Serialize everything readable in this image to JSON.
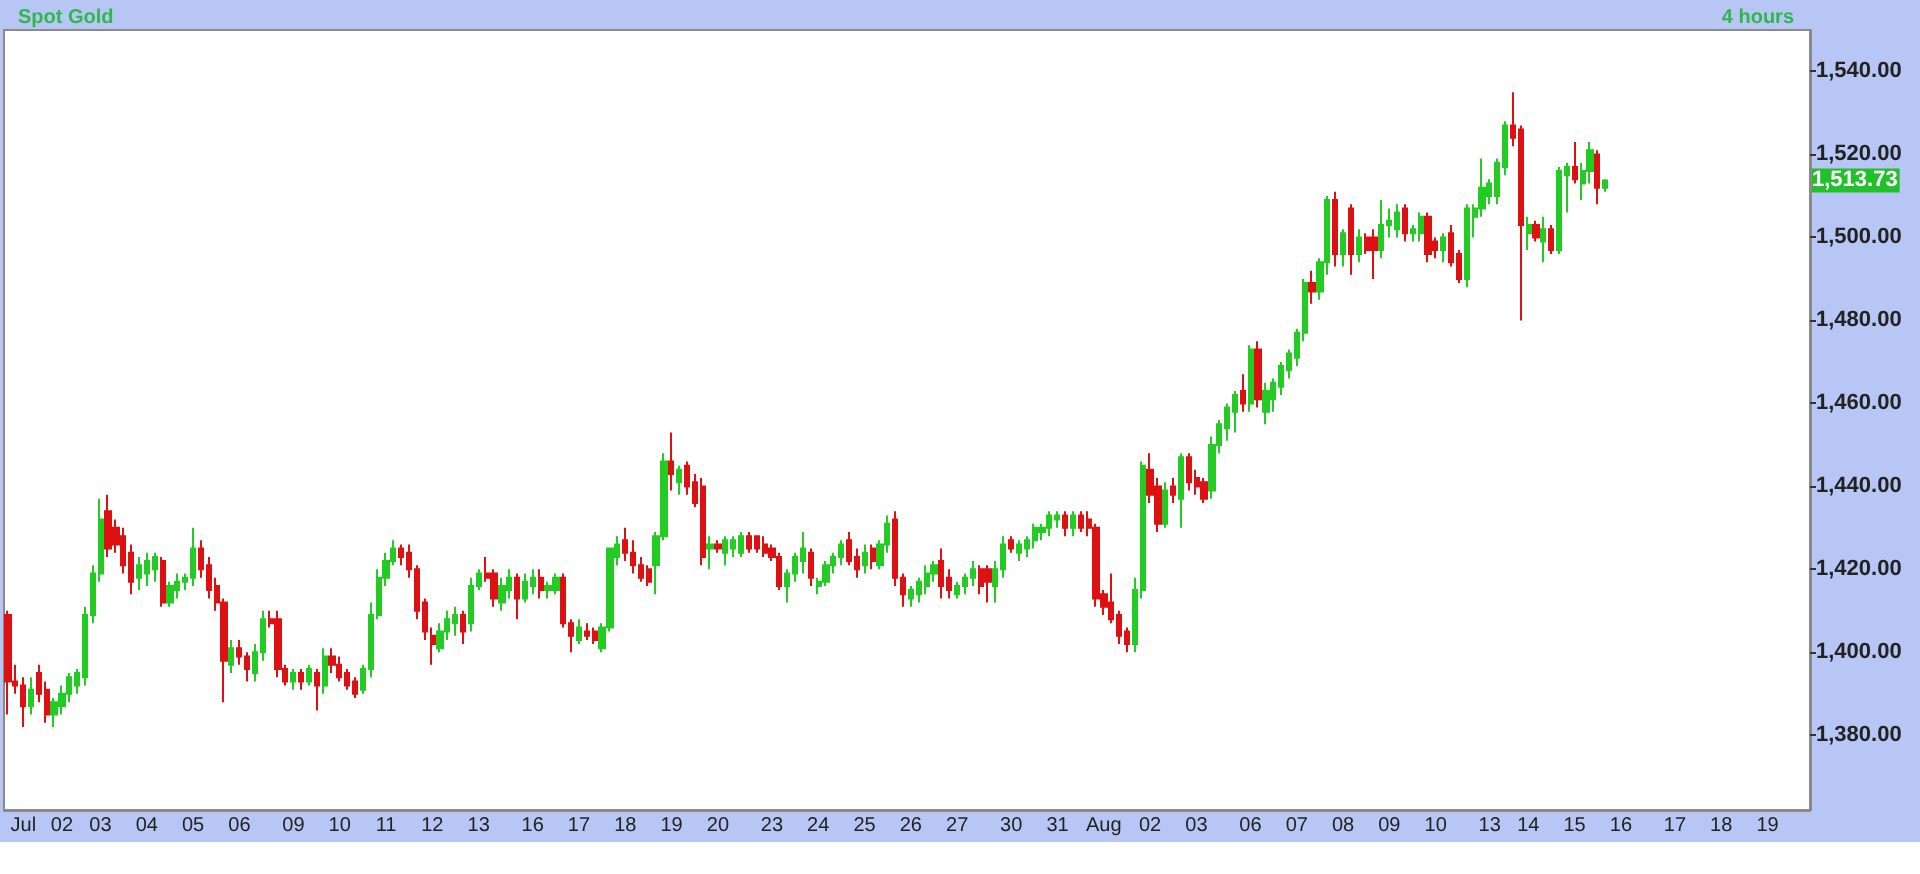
{
  "chart_data": {
    "type": "candlestick",
    "title": "Spot Gold",
    "subtitle": "4 hours",
    "categories": [
      null,
      null,
      "Jul",
      null,
      null,
      null,
      null,
      "02",
      null,
      null,
      null,
      null,
      "03",
      null,
      null,
      null,
      null,
      null,
      "04",
      null,
      null,
      null,
      null,
      null,
      "05",
      null,
      null,
      null,
      null,
      null,
      "06",
      null,
      null,
      null,
      null,
      null,
      null,
      "09",
      null,
      null,
      null,
      null,
      null,
      "10",
      null,
      null,
      null,
      null,
      null,
      "11",
      null,
      null,
      null,
      null,
      null,
      "12",
      null,
      null,
      null,
      null,
      null,
      "13",
      null,
      null,
      null,
      null,
      null,
      null,
      "16",
      null,
      null,
      null,
      null,
      null,
      "17",
      null,
      null,
      null,
      null,
      null,
      "18",
      null,
      null,
      null,
      null,
      null,
      "19",
      null,
      null,
      null,
      null,
      null,
      "20",
      null,
      null,
      null,
      null,
      null,
      null,
      "23",
      null,
      null,
      null,
      null,
      null,
      "24",
      null,
      null,
      null,
      null,
      null,
      "25",
      null,
      null,
      null,
      null,
      null,
      "26",
      null,
      null,
      null,
      null,
      null,
      "27",
      null,
      null,
      null,
      null,
      null,
      null,
      "30",
      null,
      null,
      null,
      null,
      null,
      "31",
      null,
      null,
      null,
      null,
      null,
      "Aug",
      null,
      null,
      null,
      null,
      null,
      "02",
      null,
      null,
      null,
      null,
      null,
      "03",
      null,
      null,
      null,
      null,
      null,
      null,
      "06",
      null,
      null,
      null,
      null,
      null,
      "07",
      null,
      null,
      null,
      null,
      null,
      "08",
      null,
      null,
      null,
      null,
      null,
      "09",
      null,
      null,
      null,
      null,
      null,
      "10",
      null,
      null,
      null,
      null,
      null,
      null,
      "13",
      null,
      null,
      null,
      null,
      "14",
      null,
      null,
      null,
      null,
      null,
      "15",
      null,
      null,
      null,
      null,
      null,
      "16",
      null,
      null,
      null,
      null,
      null,
      null,
      "17",
      null,
      null,
      null,
      null,
      null,
      "18",
      null,
      null,
      null,
      null,
      null,
      "19",
      null,
      null,
      null,
      null,
      null
    ],
    "ohlc": [
      [
        1409,
        1410,
        1385,
        1393
      ],
      [
        1393,
        1397,
        1390,
        1392
      ],
      [
        1392,
        1394,
        1382,
        1387
      ],
      [
        1387,
        1394,
        1385,
        1391
      ],
      [
        1395,
        1397,
        1388,
        1390
      ],
      [
        1391,
        1393,
        1383,
        1385
      ],
      [
        1385,
        1389,
        1382,
        1388
      ],
      [
        1387,
        1392,
        1385,
        1390
      ],
      [
        1390,
        1395,
        1388,
        1394
      ],
      [
        1392,
        1396,
        1390,
        1395
      ],
      [
        1394,
        1411,
        1392,
        1409
      ],
      [
        1409,
        1421,
        1407,
        1419
      ],
      [
        1419,
        1437,
        1417,
        1432
      ],
      [
        1434,
        1438,
        1423,
        1425
      ],
      [
        1430,
        1432,
        1424,
        1426
      ],
      [
        1428,
        1430,
        1419,
        1421
      ],
      [
        1424,
        1426,
        1414,
        1417
      ],
      [
        1418,
        1423,
        1415,
        1421
      ],
      [
        1419,
        1424,
        1416,
        1422
      ],
      [
        1420,
        1424,
        1417,
        1423
      ],
      [
        1422,
        1423,
        1411,
        1412
      ],
      [
        1412,
        1417,
        1411,
        1416
      ],
      [
        1415,
        1419,
        1413,
        1417
      ],
      [
        1417,
        1419,
        1415,
        1418
      ],
      [
        1418,
        1430,
        1416,
        1425
      ],
      [
        1425,
        1427,
        1418,
        1420
      ],
      [
        1421,
        1423,
        1413,
        1415
      ],
      [
        1416,
        1418,
        1410,
        1412
      ],
      [
        1412,
        1413,
        1388,
        1398
      ],
      [
        1397,
        1403,
        1395,
        1401
      ],
      [
        1401,
        1403,
        1397,
        1399
      ],
      [
        1399,
        1400,
        1393,
        1396
      ],
      [
        1395,
        1402,
        1393,
        1400
      ],
      [
        1400,
        1410,
        1398,
        1408
      ],
      [
        1408,
        1410,
        1406,
        1407
      ],
      [
        1408,
        1410,
        1394,
        1396
      ],
      [
        1396,
        1397,
        1392,
        1393
      ],
      [
        1393,
        1396,
        1391,
        1395
      ],
      [
        1395,
        1396,
        1391,
        1393
      ],
      [
        1393,
        1397,
        1392,
        1396
      ],
      [
        1395,
        1396,
        1386,
        1392
      ],
      [
        1392,
        1401,
        1390,
        1399
      ],
      [
        1399,
        1401,
        1395,
        1397
      ],
      [
        1397,
        1399,
        1393,
        1394
      ],
      [
        1395,
        1396,
        1391,
        1392
      ],
      [
        1393,
        1394,
        1389,
        1390
      ],
      [
        1391,
        1397,
        1390,
        1396
      ],
      [
        1396,
        1412,
        1394,
        1409
      ],
      [
        1409,
        1420,
        1408,
        1418
      ],
      [
        1418,
        1424,
        1416,
        1422
      ],
      [
        1422,
        1427,
        1421,
        1425
      ],
      [
        1425,
        1426,
        1421,
        1423
      ],
      [
        1424,
        1426,
        1418,
        1420
      ],
      [
        1420,
        1421,
        1408,
        1410
      ],
      [
        1412,
        1413,
        1403,
        1405
      ],
      [
        1404,
        1406,
        1397,
        1402
      ],
      [
        1401,
        1407,
        1400,
        1405
      ],
      [
        1405,
        1410,
        1403,
        1408
      ],
      [
        1407,
        1411,
        1404,
        1409
      ],
      [
        1409,
        1410,
        1402,
        1405
      ],
      [
        1407,
        1418,
        1405,
        1416
      ],
      [
        1416,
        1420,
        1415,
        1419
      ],
      [
        1419,
        1423,
        1417,
        1418
      ],
      [
        1419,
        1420,
        1411,
        1413
      ],
      [
        1412,
        1418,
        1410,
        1416
      ],
      [
        1415,
        1420,
        1413,
        1418
      ],
      [
        1418,
        1419,
        1408,
        1413
      ],
      [
        1413,
        1419,
        1412,
        1417
      ],
      [
        1416,
        1420,
        1414,
        1418
      ],
      [
        1418,
        1420,
        1413,
        1415
      ],
      [
        1415,
        1417,
        1413,
        1416
      ],
      [
        1415,
        1419,
        1414,
        1418
      ],
      [
        1418,
        1419,
        1406,
        1407
      ],
      [
        1407,
        1408,
        1400,
        1404
      ],
      [
        1403,
        1408,
        1402,
        1406
      ],
      [
        1405,
        1407,
        1403,
        1404
      ],
      [
        1405,
        1406,
        1402,
        1403
      ],
      [
        1401,
        1407,
        1400,
        1406
      ],
      [
        1406,
        1425,
        1405,
        1425
      ],
      [
        1423,
        1428,
        1421,
        1426
      ],
      [
        1427,
        1430,
        1422,
        1424
      ],
      [
        1424,
        1427,
        1419,
        1421
      ],
      [
        1421,
        1423,
        1417,
        1418
      ],
      [
        1420,
        1421,
        1416,
        1417
      ],
      [
        1421,
        1429,
        1414,
        1428
      ],
      [
        1428,
        1448,
        1427,
        1446
      ],
      [
        1446,
        1453,
        1439,
        1443
      ],
      [
        1441,
        1445,
        1438,
        1444
      ],
      [
        1445,
        1446,
        1438,
        1440
      ],
      [
        1441,
        1443,
        1435,
        1436
      ],
      [
        1440,
        1442,
        1421,
        1423
      ],
      [
        1425,
        1428,
        1420,
        1426
      ],
      [
        1426,
        1427,
        1424,
        1425
      ],
      [
        1424,
        1428,
        1421,
        1427
      ],
      [
        1425,
        1428,
        1423,
        1427
      ],
      [
        1424,
        1429,
        1423,
        1428
      ],
      [
        1428,
        1429,
        1424,
        1425
      ],
      [
        1428,
        1428,
        1424,
        1425
      ],
      [
        1426,
        1428,
        1423,
        1424
      ],
      [
        1425,
        1426,
        1422,
        1423
      ],
      [
        1423,
        1424,
        1415,
        1416
      ],
      [
        1416,
        1420,
        1412,
        1419
      ],
      [
        1419,
        1424,
        1417,
        1423
      ],
      [
        1422,
        1429,
        1419,
        1425
      ],
      [
        1424,
        1425,
        1416,
        1418
      ],
      [
        1416,
        1418,
        1414,
        1417
      ],
      [
        1417,
        1422,
        1416,
        1421
      ],
      [
        1421,
        1424,
        1419,
        1423
      ],
      [
        1423,
        1427,
        1421,
        1426
      ],
      [
        1427,
        1429,
        1421,
        1422
      ],
      [
        1423,
        1425,
        1418,
        1420
      ],
      [
        1421,
        1426,
        1419,
        1424
      ],
      [
        1425,
        1426,
        1420,
        1422
      ],
      [
        1421,
        1427,
        1420,
        1426
      ],
      [
        1426,
        1433,
        1424,
        1431
      ],
      [
        1432,
        1434,
        1416,
        1418
      ],
      [
        1418,
        1419,
        1411,
        1414
      ],
      [
        1413,
        1416,
        1411,
        1415
      ],
      [
        1414,
        1418,
        1412,
        1417
      ],
      [
        1416,
        1421,
        1414,
        1419
      ],
      [
        1419,
        1422,
        1417,
        1421
      ],
      [
        1422,
        1425,
        1413,
        1416
      ],
      [
        1418,
        1420,
        1413,
        1415
      ],
      [
        1414,
        1417,
        1413,
        1416
      ],
      [
        1416,
        1419,
        1414,
        1418
      ],
      [
        1418,
        1422,
        1416,
        1420
      ],
      [
        1420,
        1421,
        1414,
        1416
      ],
      [
        1420,
        1421,
        1412,
        1417
      ],
      [
        1416,
        1422,
        1412,
        1420
      ],
      [
        1420,
        1428,
        1418,
        1426
      ],
      [
        1427,
        1428,
        1424,
        1425
      ],
      [
        1424,
        1427,
        1422,
        1426
      ],
      [
        1425,
        1428,
        1423,
        1427
      ],
      [
        1427,
        1431,
        1425,
        1430
      ],
      [
        1429,
        1431,
        1427,
        1430
      ],
      [
        1430,
        1434,
        1428,
        1433
      ],
      [
        1432,
        1434,
        1430,
        1433
      ],
      [
        1433,
        1434,
        1428,
        1430
      ],
      [
        1430,
        1434,
        1428,
        1433
      ],
      [
        1433,
        1434,
        1429,
        1430
      ],
      [
        1432,
        1434,
        1428,
        1430
      ],
      [
        1430,
        1431,
        1411,
        1413
      ],
      [
        1414,
        1415,
        1409,
        1411
      ],
      [
        1412,
        1419,
        1407,
        1408
      ],
      [
        1409,
        1410,
        1402,
        1404
      ],
      [
        1405,
        1406,
        1400,
        1402
      ],
      [
        1402,
        1418,
        1400,
        1415
      ],
      [
        1415,
        1446,
        1413,
        1445
      ],
      [
        1444,
        1448,
        1436,
        1438
      ],
      [
        1440,
        1442,
        1429,
        1431
      ],
      [
        1431,
        1441,
        1430,
        1439
      ],
      [
        1440,
        1442,
        1436,
        1438
      ],
      [
        1437,
        1448,
        1430,
        1447
      ],
      [
        1447,
        1448,
        1439,
        1441
      ],
      [
        1442,
        1444,
        1438,
        1440
      ],
      [
        1441,
        1442,
        1436,
        1437
      ],
      [
        1439,
        1452,
        1437,
        1450
      ],
      [
        1450,
        1456,
        1448,
        1455
      ],
      [
        1454,
        1460,
        1451,
        1459
      ],
      [
        1458,
        1463,
        1453,
        1462
      ],
      [
        1463,
        1467,
        1458,
        1460
      ],
      [
        1460,
        1474,
        1458,
        1473
      ],
      [
        1473,
        1475,
        1459,
        1461
      ],
      [
        1458,
        1465,
        1455,
        1463
      ],
      [
        1461,
        1466,
        1458,
        1465
      ],
      [
        1464,
        1470,
        1462,
        1469
      ],
      [
        1468,
        1473,
        1466,
        1472
      ],
      [
        1471,
        1478,
        1469,
        1477
      ],
      [
        1477,
        1490,
        1475,
        1489
      ],
      [
        1489,
        1492,
        1484,
        1487
      ],
      [
        1487,
        1495,
        1485,
        1494
      ],
      [
        1494,
        1510,
        1491,
        1509
      ],
      [
        1509,
        1511,
        1493,
        1496
      ],
      [
        1496,
        1502,
        1493,
        1501
      ],
      [
        1507,
        1508,
        1491,
        1496
      ],
      [
        1496,
        1502,
        1494,
        1500
      ],
      [
        1500,
        1501,
        1496,
        1497
      ],
      [
        1500,
        1502,
        1490,
        1497
      ],
      [
        1497,
        1509,
        1495,
        1503
      ],
      [
        1503,
        1507,
        1500,
        1504
      ],
      [
        1502,
        1508,
        1500,
        1506
      ],
      [
        1507,
        1508,
        1499,
        1501
      ],
      [
        1501,
        1503,
        1499,
        1502
      ],
      [
        1501,
        1506,
        1499,
        1505
      ],
      [
        1505,
        1506,
        1494,
        1496
      ],
      [
        1499,
        1500,
        1495,
        1497
      ],
      [
        1497,
        1501,
        1494,
        1500
      ],
      [
        1501,
        1503,
        1493,
        1494
      ],
      [
        1496,
        1497,
        1489,
        1490
      ],
      [
        1490,
        1508,
        1488,
        1507
      ],
      [
        1505,
        1508,
        1500,
        1507
      ],
      [
        1507,
        1519,
        1505,
        1512
      ],
      [
        1510,
        1514,
        1508,
        1513
      ],
      [
        1510,
        1519,
        1508,
        1518
      ],
      [
        1517,
        1528,
        1515,
        1527
      ],
      [
        1527,
        1535,
        1522,
        1524
      ],
      [
        1526,
        1527,
        1480,
        1503
      ],
      [
        1501,
        1505,
        1497,
        1503
      ],
      [
        1503,
        1504,
        1499,
        1500
      ],
      [
        1499,
        1505,
        1494,
        1502
      ],
      [
        1502,
        1503,
        1496,
        1497
      ],
      [
        1497,
        1517,
        1496,
        1516
      ],
      [
        1515,
        1518,
        1506,
        1517
      ],
      [
        1517,
        1523,
        1513,
        1514
      ],
      [
        1513,
        1518,
        1509,
        1516
      ],
      [
        1516,
        1523,
        1513,
        1521
      ],
      [
        1520,
        1521,
        1508,
        1512
      ],
      [
        1512,
        1514,
        1511,
        1513.73
      ],
      null,
      null,
      null,
      null,
      null,
      null,
      null,
      null,
      null,
      null,
      null,
      null,
      null,
      null,
      null,
      null,
      null,
      null,
      null,
      null,
      null,
      null,
      null,
      null,
      null,
      null
    ],
    "colors": [
      "#dd1111",
      "#dd1111",
      "#dd1111",
      "#22cc22",
      "#dd1111",
      "#dd1111",
      "#22cc22",
      "#22cc22",
      "#22cc22",
      "#22cc22",
      "#22cc22",
      "#22cc22",
      "#22cc22",
      "#dd1111",
      "#dd1111",
      "#dd1111",
      "#dd1111",
      "#22cc22",
      "#22cc22",
      "#22cc22",
      "#dd1111",
      "#22cc22",
      "#22cc22",
      "#22cc22",
      "#22cc22",
      "#dd1111",
      "#dd1111",
      "#dd1111",
      "#dd1111",
      "#22cc22",
      "#dd1111",
      "#dd1111",
      "#22cc22",
      "#22cc22",
      "#dd1111",
      "#dd1111",
      "#dd1111",
      "#22cc22",
      "#dd1111",
      "#22cc22",
      "#dd1111",
      "#22cc22",
      "#dd1111",
      "#dd1111",
      "#dd1111",
      "#dd1111",
      "#22cc22",
      "#22cc22",
      "#22cc22",
      "#22cc22",
      "#22cc22",
      "#dd1111",
      "#dd1111",
      "#dd1111",
      "#dd1111",
      "#dd1111",
      "#22cc22",
      "#22cc22",
      "#22cc22",
      "#dd1111",
      "#22cc22",
      "#22cc22",
      "#dd1111",
      "#dd1111",
      "#22cc22",
      "#22cc22",
      "#dd1111",
      "#22cc22",
      "#22cc22",
      "#dd1111",
      "#22cc22",
      "#22cc22",
      "#dd1111",
      "#dd1111",
      "#22cc22",
      "#dd1111",
      "#dd1111",
      "#22cc22",
      "#22cc22",
      "#22cc22",
      "#dd1111",
      "#dd1111",
      "#dd1111",
      "#dd1111",
      "#22cc22",
      "#22cc22",
      "#dd1111",
      "#22cc22",
      "#dd1111",
      "#dd1111",
      "#dd1111",
      "#22cc22",
      "#dd1111",
      "#22cc22",
      "#22cc22",
      "#22cc22",
      "#dd1111",
      "#dd1111",
      "#dd1111",
      "#dd1111",
      "#dd1111",
      "#22cc22",
      "#22cc22",
      "#22cc22",
      "#dd1111",
      "#22cc22",
      "#22cc22",
      "#22cc22",
      "#22cc22",
      "#dd1111",
      "#dd1111",
      "#22cc22",
      "#dd1111",
      "#22cc22",
      "#22cc22",
      "#dd1111",
      "#dd1111",
      "#22cc22",
      "#22cc22",
      "#22cc22",
      "#22cc22",
      "#dd1111",
      "#dd1111",
      "#22cc22",
      "#22cc22",
      "#22cc22",
      "#dd1111",
      "#dd1111",
      "#22cc22",
      "#22cc22",
      "#dd1111",
      "#22cc22",
      "#22cc22",
      "#22cc22",
      "#22cc22",
      "#22cc22",
      "#22cc22",
      "#dd1111",
      "#22cc22",
      "#dd1111",
      "#dd1111",
      "#dd1111",
      "#dd1111",
      "#dd1111",
      "#dd1111",
      "#dd1111",
      "#22cc22",
      "#22cc22",
      "#dd1111",
      "#dd1111",
      "#22cc22",
      "#dd1111",
      "#22cc22",
      "#dd1111",
      "#dd1111",
      "#dd1111",
      "#22cc22",
      "#22cc22",
      "#22cc22",
      "#22cc22",
      "#dd1111",
      "#22cc22",
      "#dd1111",
      "#22cc22",
      "#22cc22",
      "#22cc22",
      "#22cc22",
      "#22cc22",
      "#22cc22",
      "#dd1111",
      "#22cc22",
      "#22cc22",
      "#dd1111",
      "#22cc22",
      "#dd1111",
      "#22cc22",
      "#dd1111",
      "#dd1111",
      "#22cc22",
      "#22cc22",
      "#22cc22",
      "#dd1111",
      "#22cc22",
      "#22cc22",
      "#dd1111",
      "#dd1111",
      "#22cc22",
      "#dd1111",
      "#dd1111",
      "#22cc22",
      "#22cc22",
      "#22cc22",
      "#22cc22",
      "#22cc22",
      "#22cc22",
      "#dd1111",
      "#dd1111",
      "#22cc22",
      "#dd1111",
      "#22cc22",
      "#dd1111",
      "#22cc22",
      "#22cc22",
      "#dd1111",
      "#22cc22",
      "#22cc22",
      "#dd1111",
      "#22cc22",
      null,
      null,
      null,
      null,
      null,
      null,
      null,
      null,
      null,
      null,
      null,
      null,
      null,
      null,
      null,
      null,
      null,
      null,
      null,
      null,
      null,
      null,
      null,
      null,
      null,
      null
    ],
    "ylim": [
      1362,
      1550
    ],
    "yticks": [
      {
        "value": 1380,
        "label": "1,380.00"
      },
      {
        "value": 1400,
        "label": "1,400.00"
      },
      {
        "value": 1420,
        "label": "1,420.00"
      },
      {
        "value": 1440,
        "label": "1,440.00"
      },
      {
        "value": 1460,
        "label": "1,460.00"
      },
      {
        "value": 1480,
        "label": "1,480.00"
      },
      {
        "value": 1500,
        "label": "1,500.00"
      },
      {
        "value": 1520,
        "label": "1,520.00"
      },
      {
        "value": 1540,
        "label": "1,540.00"
      }
    ],
    "annotations": [
      "1,513.73"
    ],
    "grid": false
  }
}
